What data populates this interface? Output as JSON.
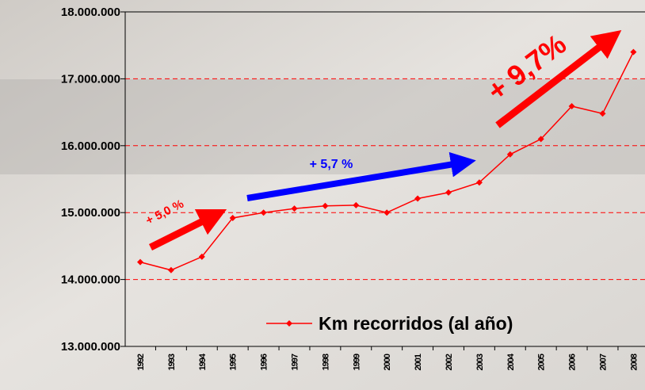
{
  "chart_data": {
    "type": "line",
    "categories": [
      "1992",
      "1993",
      "1994",
      "1995",
      "1996",
      "1997",
      "1998",
      "1999",
      "2000",
      "2001",
      "2002",
      "2003",
      "2004",
      "2005",
      "2006",
      "2007",
      "2008"
    ],
    "series": [
      {
        "name": "Km recorridos (al año)",
        "color": "#ff0000",
        "values": [
          14260000,
          14140000,
          14340000,
          14920000,
          15000000,
          15060000,
          15100000,
          15110000,
          15000000,
          15210000,
          15300000,
          15450000,
          15870000,
          16100000,
          16590000,
          16480000,
          17400000
        ]
      }
    ],
    "ylim": [
      13000000,
      18000000
    ],
    "yticks": [
      {
        "value": 13000000,
        "label": "13.000.000"
      },
      {
        "value": 14000000,
        "label": "14.000.000"
      },
      {
        "value": 15000000,
        "label": "15.000.000"
      },
      {
        "value": 16000000,
        "label": "16.000.000"
      },
      {
        "value": 17000000,
        "label": "17.000.000"
      },
      {
        "value": 18000000,
        "label": "18.000.000"
      }
    ],
    "grid": true,
    "annotations": [
      "+ 5,0 %",
      "+ 5,7 %",
      "+ 9,7%"
    ],
    "legend": "lower right"
  }
}
